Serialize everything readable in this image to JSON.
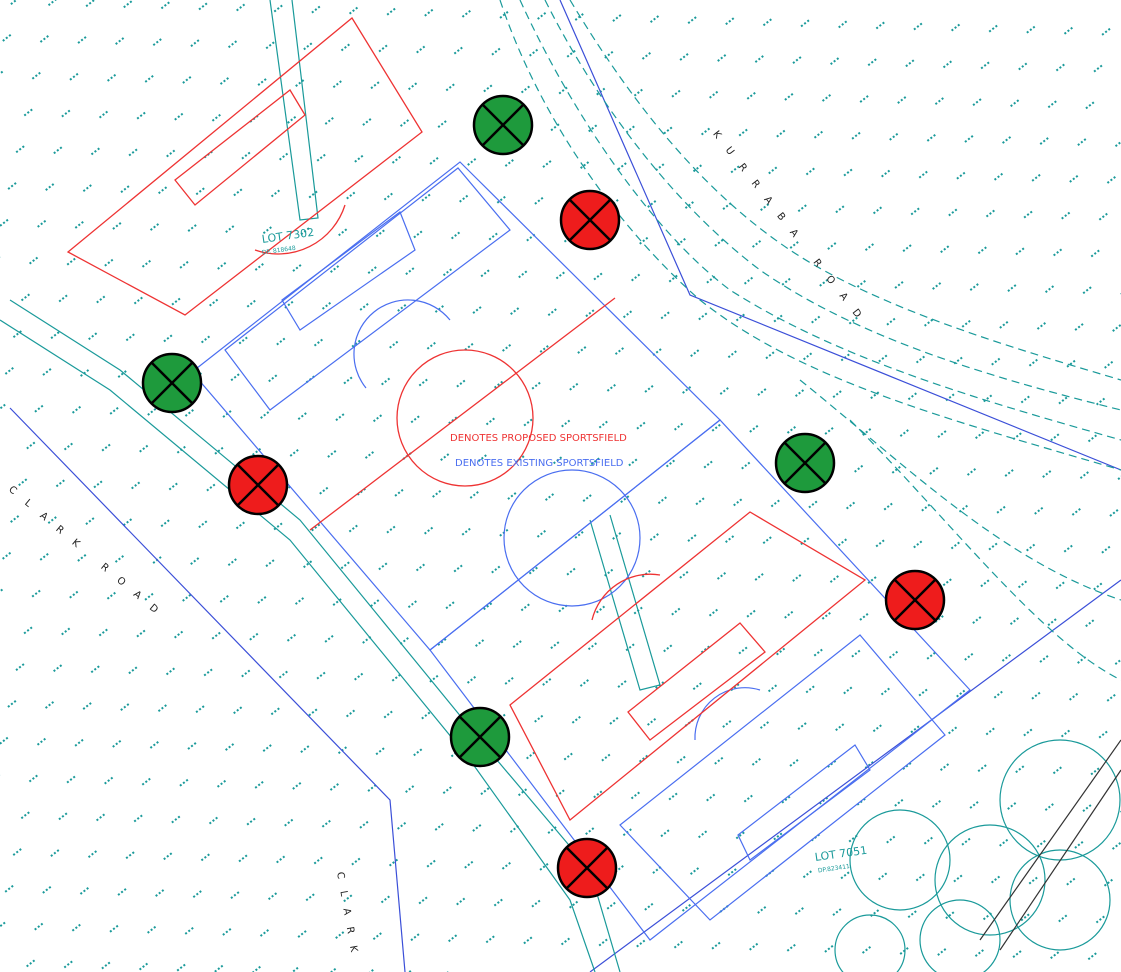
{
  "map": {
    "lot_top": {
      "name": "LOT 7302",
      "dp": "DP. 818648"
    },
    "lot_bottom": {
      "name": "LOT 7051",
      "dp": "DP.823411"
    },
    "legend": {
      "proposed": "DENOTES PROPOSED SPORTSFIELD",
      "existing": "DENOTES EXISTING SPORTSFIELD"
    },
    "roads": {
      "kurraba": "KURRABA ROAD",
      "clark_road": "CLARK ROAD",
      "clark": "CLARK"
    }
  }
}
